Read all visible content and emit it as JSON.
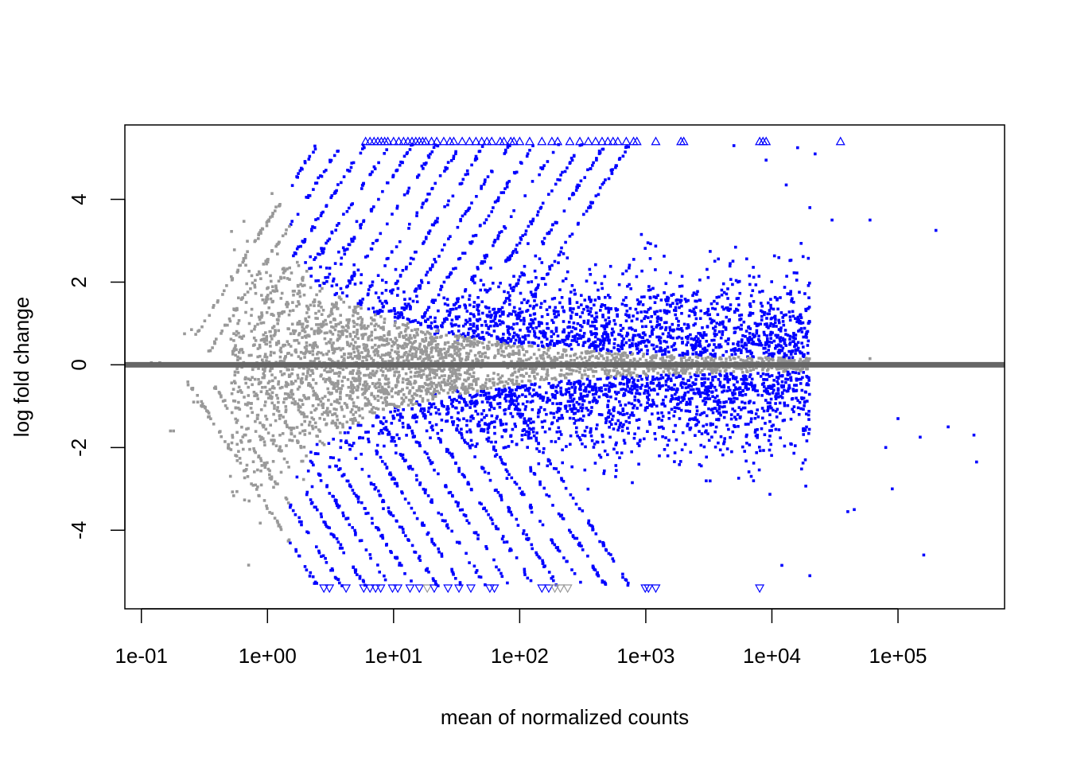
{
  "chart_data": {
    "type": "scatter",
    "title": "",
    "xlabel": "mean of normalized counts",
    "ylabel": "log fold change",
    "x_scale": "log10",
    "xlim": [
      0.074,
      700000
    ],
    "ylim": [
      -5.9,
      5.8
    ],
    "x_ticks": [
      0.1,
      1,
      10,
      100,
      1000,
      10000,
      100000
    ],
    "x_tick_labels": [
      "1e-01",
      "1e+00",
      "1e+01",
      "1e+02",
      "1e+03",
      "1e+04",
      "1e+05"
    ],
    "y_ticks": [
      -4,
      -2,
      0,
      2,
      4
    ],
    "y_tick_labels": [
      "-4",
      "-2",
      "0",
      "2",
      "4"
    ],
    "reference_line": {
      "y": 0,
      "color": "#666666"
    },
    "series": [
      {
        "color": "#999999",
        "marker": "point"
      },
      {
        "color": "#0000ff",
        "marker": "point"
      }
    ],
    "clipped_upper": {
      "y": 5.4,
      "marker": "triangle-up",
      "x": [
        6,
        6.5,
        7,
        7.5,
        8,
        8.5,
        9,
        10,
        11,
        12,
        13,
        14,
        15,
        16,
        17,
        18,
        20,
        22,
        25,
        28,
        30,
        35,
        40,
        45,
        50,
        55,
        60,
        70,
        75,
        85,
        90,
        100,
        120,
        150,
        180,
        200,
        250,
        300,
        350,
        400,
        450,
        500,
        550,
        600,
        700,
        800,
        850,
        1200,
        1900,
        2000,
        8000,
        8500,
        9000,
        35000
      ],
      "color": "#0000ff"
    },
    "clipped_lower": {
      "y": -5.4,
      "marker": "triangle-down",
      "points": [
        {
          "x": 2.8,
          "color": "#0000ff"
        },
        {
          "x": 3.1,
          "color": "#0000ff"
        },
        {
          "x": 4.2,
          "color": "#0000ff"
        },
        {
          "x": 5.8,
          "color": "#0000ff"
        },
        {
          "x": 6.5,
          "color": "#0000ff"
        },
        {
          "x": 7.2,
          "color": "#0000ff"
        },
        {
          "x": 7.9,
          "color": "#0000ff"
        },
        {
          "x": 9.8,
          "color": "#0000ff"
        },
        {
          "x": 10.8,
          "color": "#0000ff"
        },
        {
          "x": 13.5,
          "color": "#0000ff"
        },
        {
          "x": 16,
          "color": "#0000ff"
        },
        {
          "x": 18.5,
          "color": "#999999"
        },
        {
          "x": 21,
          "color": "#0000ff"
        },
        {
          "x": 27,
          "color": "#0000ff"
        },
        {
          "x": 33,
          "color": "#0000ff"
        },
        {
          "x": 41,
          "color": "#0000ff"
        },
        {
          "x": 58,
          "color": "#0000ff"
        },
        {
          "x": 63,
          "color": "#0000ff"
        },
        {
          "x": 150,
          "color": "#0000ff"
        },
        {
          "x": 170,
          "color": "#0000ff"
        },
        {
          "x": 190,
          "color": "#999999"
        },
        {
          "x": 210,
          "color": "#999999"
        },
        {
          "x": 240,
          "color": "#999999"
        },
        {
          "x": 990,
          "color": "#0000ff"
        },
        {
          "x": 1050,
          "color": "#0000ff"
        },
        {
          "x": 1200,
          "color": "#0000ff"
        },
        {
          "x": 8000,
          "color": "#0000ff"
        }
      ]
    },
    "isolated_points": [
      {
        "x": 200000,
        "y": 3.25,
        "color": "#0000ff"
      },
      {
        "x": 60000,
        "y": 3.5,
        "color": "#0000ff"
      },
      {
        "x": 400000,
        "y": -1.7,
        "color": "#0000ff"
      },
      {
        "x": 420000,
        "y": -2.35,
        "color": "#0000ff"
      },
      {
        "x": 250000,
        "y": -1.5,
        "color": "#0000ff"
      },
      {
        "x": 150000,
        "y": -1.75,
        "color": "#0000ff"
      },
      {
        "x": 160000,
        "y": -4.6,
        "color": "#0000ff"
      },
      {
        "x": 100000,
        "y": -1.3,
        "color": "#0000ff"
      },
      {
        "x": 80000,
        "y": -2.0,
        "color": "#0000ff"
      },
      {
        "x": 90000,
        "y": -3.0,
        "color": "#0000ff"
      },
      {
        "x": 45000,
        "y": -3.5,
        "color": "#0000ff"
      },
      {
        "x": 40000,
        "y": -3.55,
        "color": "#0000ff"
      },
      {
        "x": 20000,
        "y": -5.1,
        "color": "#0000ff"
      },
      {
        "x": 12000,
        "y": -4.85,
        "color": "#0000ff"
      },
      {
        "x": 9000,
        "y": 4.95,
        "color": "#0000ff"
      },
      {
        "x": 5000,
        "y": 5.3,
        "color": "#0000ff"
      },
      {
        "x": 13000,
        "y": 4.35,
        "color": "#0000ff"
      },
      {
        "x": 20000,
        "y": 3.8,
        "color": "#0000ff"
      },
      {
        "x": 30000,
        "y": 3.5,
        "color": "#0000ff"
      },
      {
        "x": 16000,
        "y": 5.25,
        "color": "#0000ff"
      },
      {
        "x": 22000,
        "y": 5.1,
        "color": "#0000ff"
      },
      {
        "x": 60000,
        "y": 0.15,
        "color": "#999999"
      },
      {
        "x": 0.12,
        "y": 0.05,
        "color": "#999999"
      },
      {
        "x": 0.14,
        "y": 0.05,
        "color": "#999999"
      },
      {
        "x": 0.17,
        "y": -1.6,
        "color": "#999999"
      },
      {
        "x": 0.18,
        "y": -1.6,
        "color": "#999999"
      },
      {
        "x": 0.26,
        "y": -0.9,
        "color": "#999999"
      },
      {
        "x": 0.28,
        "y": -0.9,
        "color": "#999999"
      },
      {
        "x": 0.22,
        "y": 0.75,
        "color": "#999999"
      },
      {
        "x": 0.25,
        "y": 0.85,
        "color": "#999999"
      }
    ]
  }
}
